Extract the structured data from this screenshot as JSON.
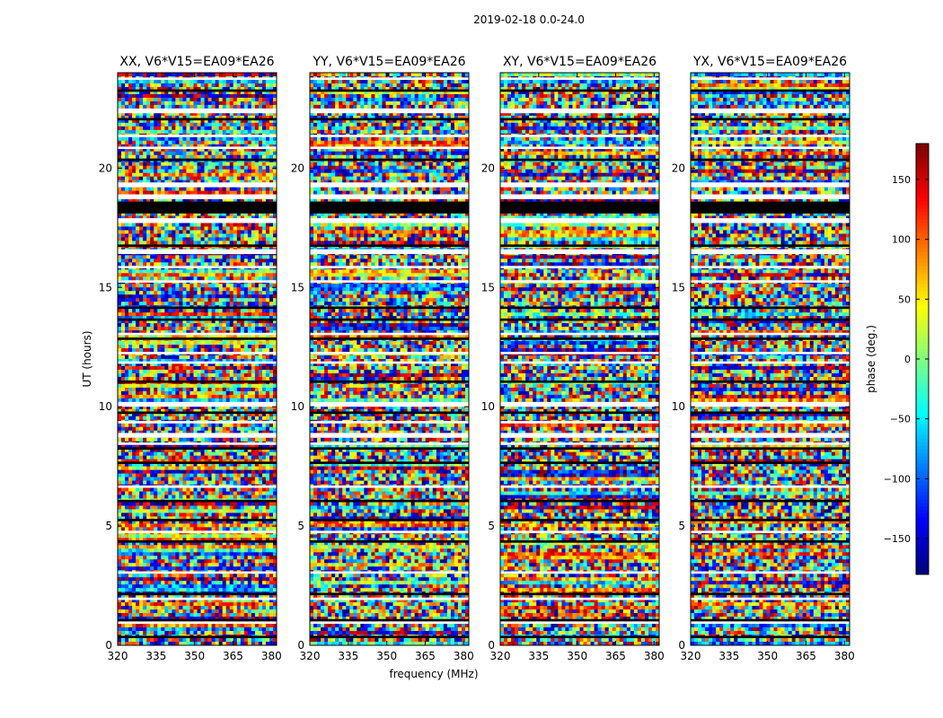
{
  "figure": {
    "suptitle": "2019-02-18 0.0-24.0"
  },
  "chart_data": {
    "type": "heatmap",
    "xlabel": "frequency (MHz)",
    "ylabel": "UT (hours)",
    "xlim": [
      320,
      382
    ],
    "ylim": [
      0,
      24
    ],
    "xticks": [
      320,
      335,
      350,
      365,
      380
    ],
    "yticks": [
      0,
      5,
      10,
      15,
      20
    ],
    "colormap": "jet",
    "colorbar": {
      "label": "phase (deg.)",
      "range": [
        -180,
        180
      ],
      "ticks": [
        -150,
        -100,
        -50,
        0,
        50,
        100,
        150
      ],
      "tick_labels": [
        "−150",
        "−100",
        "−50",
        "0",
        "50",
        "100",
        "150"
      ]
    },
    "panels": [
      {
        "title": "XX, V6*V15=EA09*EA26"
      },
      {
        "title": "YY, V6*V15=EA09*EA26"
      },
      {
        "title": "XY, V6*V15=EA09*EA26"
      },
      {
        "title": "YX, V6*V15=EA09*EA26"
      }
    ],
    "flagged_black_ut": [
      [
        18.1,
        18.6
      ],
      [
        14.1,
        14.2
      ],
      [
        12.8,
        12.9
      ],
      [
        9.7,
        9.8
      ],
      [
        7.6,
        7.7
      ],
      [
        5.2,
        5.3
      ],
      [
        2.1,
        2.2
      ],
      [
        1.0,
        1.1
      ],
      [
        23.2,
        23.3
      ],
      [
        22.0,
        22.1
      ],
      [
        20.3,
        20.4
      ],
      [
        16.7,
        16.8
      ],
      [
        13.6,
        13.7
      ],
      [
        11.0,
        11.1
      ],
      [
        8.2,
        8.3
      ],
      [
        6.0,
        6.1
      ],
      [
        4.3,
        4.4
      ],
      [
        0.3,
        0.4
      ]
    ],
    "blank_white_ut": [
      [
        22.3,
        22.5
      ],
      [
        21.3,
        21.4
      ],
      [
        20.8,
        20.9
      ],
      [
        19.2,
        19.4
      ],
      [
        18.7,
        18.9
      ],
      [
        17.7,
        17.9
      ],
      [
        16.4,
        16.6
      ],
      [
        15.8,
        15.9
      ],
      [
        15.2,
        15.3
      ],
      [
        13.0,
        13.1
      ],
      [
        12.2,
        12.3
      ],
      [
        11.8,
        11.9
      ],
      [
        10.0,
        10.2
      ],
      [
        9.3,
        9.4
      ],
      [
        8.7,
        8.9
      ],
      [
        8.4,
        8.5
      ],
      [
        6.6,
        6.7
      ],
      [
        4.7,
        4.8
      ],
      [
        3.0,
        3.1
      ],
      [
        1.9,
        2.0
      ],
      [
        0.9,
        1.0
      ],
      [
        23.7,
        23.8
      ]
    ]
  }
}
